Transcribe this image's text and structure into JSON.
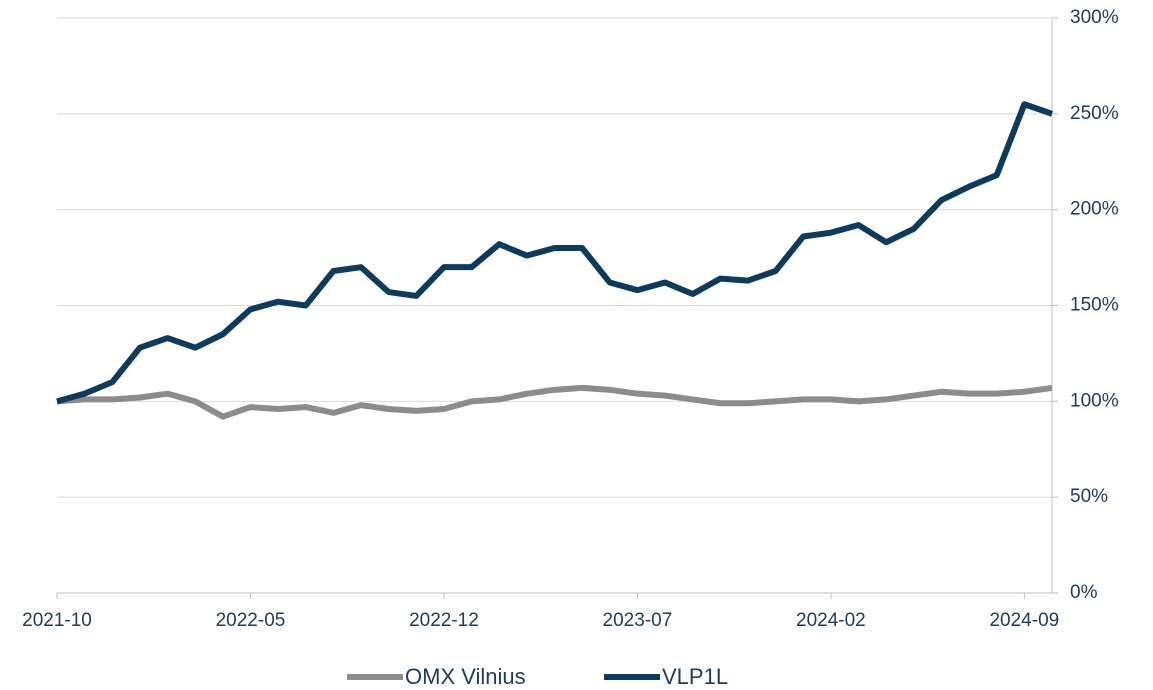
{
  "chart_data": {
    "type": "line",
    "x": [
      "2021-10",
      "2021-11",
      "2021-12",
      "2022-01",
      "2022-02",
      "2022-03",
      "2022-04",
      "2022-05",
      "2022-06",
      "2022-07",
      "2022-08",
      "2022-09",
      "2022-10",
      "2022-11",
      "2022-12",
      "2023-01",
      "2023-02",
      "2023-03",
      "2023-04",
      "2023-05",
      "2023-06",
      "2023-07",
      "2023-08",
      "2023-09",
      "2023-10",
      "2023-11",
      "2023-12",
      "2024-01",
      "2024-02",
      "2024-03",
      "2024-04",
      "2024-05",
      "2024-06",
      "2024-07",
      "2024-08",
      "2024-09",
      "2024-10"
    ],
    "xticks": [
      "2021-10",
      "2022-05",
      "2022-12",
      "2023-07",
      "2024-02",
      "2024-09"
    ],
    "series": [
      {
        "name": "OMX Vilnius",
        "color": "#8c8c8c",
        "values": [
          100,
          101,
          101,
          102,
          104,
          100,
          92,
          97,
          96,
          97,
          94,
          98,
          96,
          95,
          96,
          100,
          101,
          104,
          106,
          107,
          106,
          104,
          103,
          101,
          99,
          99,
          100,
          101,
          101,
          100,
          101,
          103,
          105,
          104,
          104,
          105,
          107
        ]
      },
      {
        "name": "VLP1L",
        "color": "#0d3b5e",
        "values": [
          100,
          104,
          110,
          128,
          133,
          128,
          135,
          148,
          152,
          150,
          168,
          170,
          157,
          155,
          170,
          170,
          182,
          176,
          180,
          180,
          162,
          158,
          162,
          156,
          164,
          163,
          168,
          186,
          188,
          192,
          183,
          190,
          205,
          212,
          218,
          255,
          250
        ]
      }
    ],
    "ylim": [
      0,
      300
    ],
    "yticks": [
      {
        "value": 0,
        "label": "0%"
      },
      {
        "value": 50,
        "label": "50%"
      },
      {
        "value": 100,
        "label": "100%"
      },
      {
        "value": 150,
        "label": "150%"
      },
      {
        "value": 200,
        "label": "200%"
      },
      {
        "value": 250,
        "label": "250%"
      },
      {
        "value": 300,
        "label": "300%"
      }
    ],
    "grid": true,
    "legend": "bottom"
  }
}
